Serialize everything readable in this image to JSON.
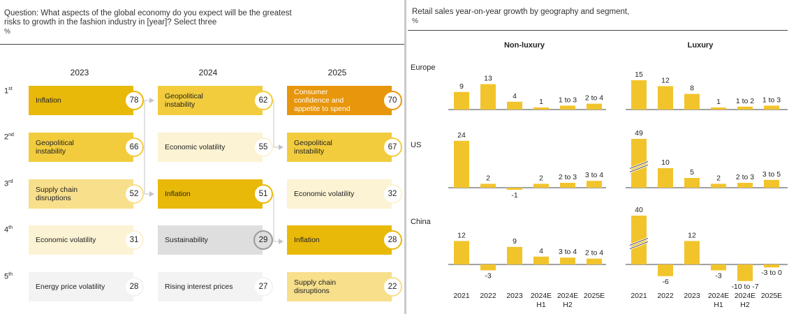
{
  "left": {
    "question": "Question: What aspects of the global economy do you expect will be the greatest risks to growth in the fashion industry in [year]? Select three",
    "unit": "%",
    "ranks": [
      {
        "num": "1",
        "sup": "st"
      },
      {
        "num": "2",
        "sup": "nd"
      },
      {
        "num": "3",
        "sup": "rd"
      },
      {
        "num": "4",
        "sup": "th"
      },
      {
        "num": "5",
        "sup": "th"
      }
    ],
    "years": [
      "2023",
      "2024",
      "2025"
    ],
    "columns": [
      [
        {
          "label": "Inflation",
          "value": "78",
          "fill": "#e9b90a"
        },
        {
          "label": "Geopolitical instability",
          "value": "66",
          "fill": "#f2cc3d"
        },
        {
          "label": "Supply chain disruptions",
          "value": "52",
          "fill": "#f7df8b"
        },
        {
          "label": "Economic volatility",
          "value": "31",
          "fill": "#fcf3d4"
        },
        {
          "label": "Energy price volatility",
          "value": "28",
          "fill": "#f3f3f3"
        }
      ],
      [
        {
          "label": "Geopolitical instability",
          "value": "62",
          "fill": "#f2cc3d"
        },
        {
          "label": "Economic volatility",
          "value": "55",
          "fill": "#fcf3d4"
        },
        {
          "label": "Inflation",
          "value": "51",
          "fill": "#e9b90a"
        },
        {
          "label": "Sustainability",
          "value": "29",
          "fill": "#dedede"
        },
        {
          "label": "Rising interest prices",
          "value": "27",
          "fill": "#f3f3f3"
        }
      ],
      [
        {
          "label": "Consumer confidence and appetite to spend",
          "value": "70",
          "fill": "#e8960b"
        },
        {
          "label": "Geopolitical instability",
          "value": "67",
          "fill": "#f2cc3d"
        },
        {
          "label": "Economic volatility",
          "value": "32",
          "fill": "#fcf3d4"
        },
        {
          "label": "Inflation",
          "value": "28",
          "fill": "#e9b90a"
        },
        {
          "label": "Supply chain disruptions",
          "value": "22",
          "fill": "#f7df8b"
        }
      ]
    ]
  },
  "right": {
    "title": "Retail sales year-on-year growth by geography and segment,",
    "unit": "%",
    "segments": [
      "Non-luxury",
      "Luxury"
    ],
    "categories": [
      "2021",
      "2022",
      "2023",
      "2024E H1",
      "2024E H2",
      "2025E"
    ],
    "bar_color": "#f2c42c"
  },
  "chart_data": {
    "type": "bar",
    "title": "Retail sales year-on-year growth by geography and segment, %",
    "categories": [
      "2021",
      "2022",
      "2023",
      "2024E H1",
      "2024E H2",
      "2025E"
    ],
    "panels": [
      {
        "region": "Europe",
        "segment": "Non-luxury",
        "values": [
          9,
          13,
          4,
          1,
          2,
          3
        ],
        "labels": [
          "9",
          "13",
          "4",
          "1",
          "1 to 3",
          "2 to 4"
        ]
      },
      {
        "region": "Europe",
        "segment": "Luxury",
        "values": [
          15,
          12,
          8,
          1,
          1.5,
          2
        ],
        "labels": [
          "15",
          "12",
          "8",
          "1",
          "1 to 2",
          "1 to 3"
        ]
      },
      {
        "region": "US",
        "segment": "Non-luxury",
        "values": [
          24,
          2,
          -1,
          2,
          2.5,
          3.5
        ],
        "labels": [
          "24",
          "2",
          "-1",
          "2",
          "2 to 3",
          "3 to 4"
        ]
      },
      {
        "region": "US",
        "segment": "Luxury",
        "values": [
          49,
          10,
          5,
          2,
          2.5,
          4
        ],
        "labels": [
          "49",
          "10",
          "5",
          "2",
          "2 to 3",
          "3 to 5"
        ],
        "broken": [
          0
        ]
      },
      {
        "region": "China",
        "segment": "Non-luxury",
        "values": [
          12,
          -3,
          9,
          4,
          3.5,
          3
        ],
        "labels": [
          "12",
          "-3",
          "9",
          "4",
          "3 to 4",
          "2 to 4"
        ]
      },
      {
        "region": "China",
        "segment": "Luxury",
        "values": [
          40,
          -6,
          12,
          -3,
          -8.5,
          -1.5
        ],
        "labels": [
          "40",
          "-6",
          "12",
          "-3",
          "-10 to -7",
          "-3 to 0"
        ],
        "broken": [
          0
        ]
      }
    ]
  }
}
